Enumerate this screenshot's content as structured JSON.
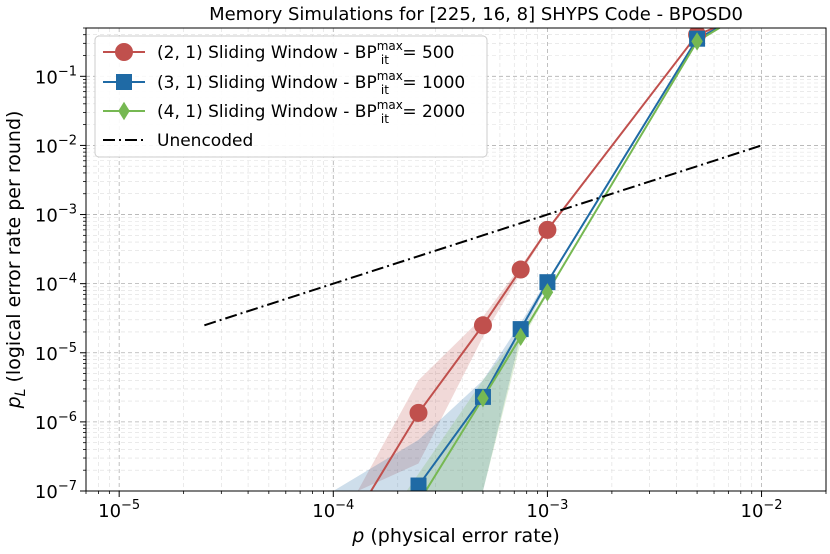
{
  "chart_data": {
    "type": "line",
    "title": "Memory Simulations for [225, 16, 8] SHYPS Code - BPOSD0",
    "xlabel": "p (physical error rate)",
    "ylabel": "p_L (logical error rate per round)",
    "xscale": "log",
    "yscale": "log",
    "xlim": [
      7e-06,
      0.02
    ],
    "ylim": [
      1e-07,
      0.5
    ],
    "grid": true,
    "legend_position": "top-left",
    "x_ticks": [
      {
        "value": 1e-05,
        "label": "10^-5"
      },
      {
        "value": 0.0001,
        "label": "10^-4"
      },
      {
        "value": 0.001,
        "label": "10^-3"
      },
      {
        "value": 0.01,
        "label": "10^-2"
      }
    ],
    "y_ticks": [
      {
        "value": 1e-07,
        "label": "10^-7"
      },
      {
        "value": 1e-06,
        "label": "10^-6"
      },
      {
        "value": 1e-05,
        "label": "10^-5"
      },
      {
        "value": 0.0001,
        "label": "10^-4"
      },
      {
        "value": 0.001,
        "label": "10^-3"
      },
      {
        "value": 0.01,
        "label": "10^-2"
      },
      {
        "value": 0.1,
        "label": "10^-1"
      }
    ],
    "series": [
      {
        "name": "(2, 1) Sliding Window - BP_it^max = 500",
        "legend_main": "(2, 1) Sliding Window - BP",
        "legend_sup": "max",
        "legend_sub": "it",
        "legend_tail": " = 500",
        "color": "#c0504d",
        "marker": "circle",
        "x": [
          0.00015,
          0.00025,
          0.0005,
          0.00075,
          0.001,
          0.005,
          0.007
        ],
        "y": [
          1e-07,
          1.35e-06,
          2.5e-05,
          0.00016,
          0.0006,
          0.4,
          0.6
        ],
        "markers_at": [
          1,
          2,
          3,
          4,
          5
        ],
        "band": {
          "x": [
            0.00013,
            0.00025,
            0.0005,
            0.00075,
            0.001
          ],
          "lower": [
            1e-07,
            2.5e-07,
            1.7e-05,
            0.00014,
            0.00057
          ],
          "upper": [
            1e-07,
            4e-06,
            3.3e-05,
            0.00018,
            0.00063
          ]
        }
      },
      {
        "name": "(3, 1) Sliding Window - BP_it^max = 1000",
        "legend_main": "(3, 1) Sliding Window - BP",
        "legend_sup": "max",
        "legend_sub": "it",
        "legend_tail": " = 1000",
        "color": "#1f6aa5",
        "marker": "square",
        "x": [
          0.00025,
          0.0005,
          0.00075,
          0.001,
          0.005,
          0.007
        ],
        "y": [
          1.2e-07,
          2.3e-06,
          2.2e-05,
          0.000105,
          0.35,
          0.6
        ],
        "markers_at": [
          0,
          1,
          2,
          3,
          4
        ],
        "band": {
          "x": [
            0.0001,
            0.00025,
            0.0005,
            0.00075,
            0.001
          ],
          "lower": [
            1e-07,
            1e-07,
            1e-07,
            1.8e-05,
            9.5e-05
          ],
          "upper": [
            1e-07,
            5.5e-07,
            4e-06,
            2.7e-05,
            0.000115
          ]
        }
      },
      {
        "name": "(4, 1) Sliding Window - BP_it^max = 2000",
        "legend_main": "(4, 1) Sliding Window - BP",
        "legend_sup": "max",
        "legend_sub": "it",
        "legend_tail": " = 2000",
        "color": "#76b852",
        "marker": "diamond",
        "x": [
          0.00027,
          0.0005,
          0.00075,
          0.001,
          0.005,
          0.007
        ],
        "y": [
          1e-07,
          2.2e-06,
          1.7e-05,
          7.5e-05,
          0.32,
          0.6
        ],
        "markers_at": [
          1,
          2,
          3,
          4
        ],
        "band": {
          "x": [
            0.00022,
            0.0005,
            0.00075,
            0.001
          ],
          "lower": [
            1e-07,
            1e-07,
            1.4e-05,
            7e-05
          ],
          "upper": [
            1e-07,
            4e-06,
            2e-05,
            8e-05
          ]
        }
      },
      {
        "name": "Unencoded",
        "legend_main": "Unencoded",
        "color": "#000000",
        "marker": "none",
        "linestyle": "dash-dot",
        "x": [
          2.5e-05,
          0.01
        ],
        "y": [
          2.5e-05,
          0.01
        ]
      }
    ]
  }
}
